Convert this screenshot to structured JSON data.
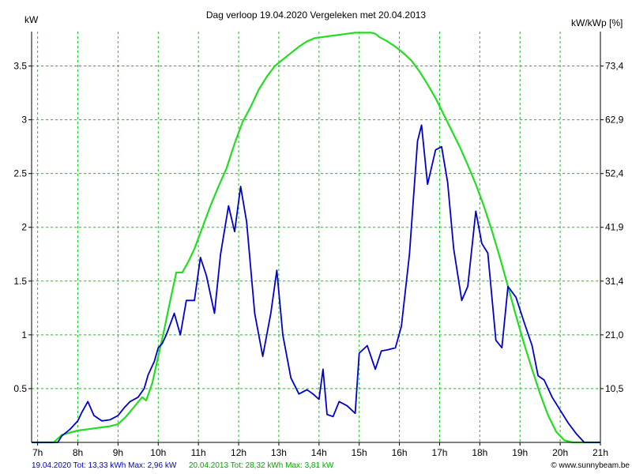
{
  "chart_data": {
    "type": "line",
    "title": "Dag  verloop 19.04.2020    Vergeleken met 20.04.2013",
    "ylabel_left": "kW",
    "ylabel_right": "kW/kWp [%]",
    "xlim": [
      6.85,
      21.0
    ],
    "ylim": [
      0,
      3.82
    ],
    "x_ticks": [
      7,
      8,
      9,
      10,
      11,
      12,
      13,
      14,
      15,
      16,
      17,
      18,
      19,
      20,
      21
    ],
    "x_tick_labels": [
      "7h",
      "8h",
      "9h",
      "10h",
      "11h",
      "12h",
      "13h",
      "14h",
      "15h",
      "16h",
      "17h",
      "18h",
      "19h",
      "20h",
      "21h"
    ],
    "y_ticks_left": [
      0.5,
      1,
      1.5,
      2,
      2.5,
      3,
      3.5
    ],
    "y_tick_labels_left": [
      "0.5",
      "1",
      "1.5",
      "2",
      "2.5",
      "3",
      "3.5"
    ],
    "y_ticks_right": [
      0.5,
      1,
      1.5,
      2,
      2.5,
      3,
      3.5
    ],
    "y_tick_labels_right": [
      "10,5",
      "21,0",
      "31,4",
      "41,9",
      "52,4",
      "62,9",
      "73,4"
    ],
    "grid": true,
    "series": [
      {
        "name": "20.04.2013",
        "color": "#22dd22",
        "x": [
          6.85,
          7.4,
          7.6,
          7.8,
          8.0,
          8.2,
          8.4,
          8.6,
          8.8,
          9.0,
          9.2,
          9.4,
          9.6,
          9.7,
          9.85,
          10.0,
          10.15,
          10.3,
          10.45,
          10.6,
          10.75,
          10.9,
          11.1,
          11.3,
          11.5,
          11.7,
          11.9,
          12.1,
          12.3,
          12.5,
          12.7,
          12.9,
          13.1,
          13.3,
          13.5,
          13.7,
          13.9,
          14.1,
          14.3,
          14.5,
          14.7,
          14.9,
          15.1,
          15.3,
          15.4,
          15.5,
          15.7,
          15.9,
          16.1,
          16.3,
          16.5,
          16.7,
          16.9,
          17.1,
          17.3,
          17.5,
          17.7,
          17.9,
          18.1,
          18.3,
          18.5,
          18.7,
          18.9,
          19.1,
          19.3,
          19.5,
          19.7,
          19.9,
          20.1,
          20.3,
          20.5,
          20.7,
          21.0
        ],
        "y": [
          0.0,
          0.0,
          0.07,
          0.09,
          0.11,
          0.12,
          0.13,
          0.14,
          0.15,
          0.17,
          0.24,
          0.33,
          0.42,
          0.39,
          0.55,
          0.8,
          1.05,
          1.32,
          1.58,
          1.58,
          1.68,
          1.8,
          2.0,
          2.2,
          2.38,
          2.55,
          2.78,
          2.98,
          3.12,
          3.28,
          3.4,
          3.5,
          3.56,
          3.62,
          3.68,
          3.73,
          3.76,
          3.77,
          3.78,
          3.79,
          3.8,
          3.81,
          3.81,
          3.81,
          3.8,
          3.77,
          3.73,
          3.68,
          3.62,
          3.55,
          3.45,
          3.33,
          3.2,
          3.05,
          2.9,
          2.75,
          2.58,
          2.4,
          2.2,
          1.97,
          1.72,
          1.45,
          1.18,
          0.92,
          0.68,
          0.45,
          0.25,
          0.1,
          0.02,
          0.0,
          0.0,
          0.0,
          0.0
        ]
      },
      {
        "name": "19.04.2020",
        "color": "#0000cc",
        "x": [
          6.85,
          7.5,
          7.6,
          7.8,
          8.0,
          8.1,
          8.25,
          8.4,
          8.6,
          8.8,
          9.0,
          9.15,
          9.3,
          9.5,
          9.65,
          9.75,
          9.9,
          10.0,
          10.1,
          10.2,
          10.4,
          10.55,
          10.7,
          10.9,
          11.05,
          11.2,
          11.4,
          11.55,
          11.75,
          11.9,
          12.05,
          12.2,
          12.4,
          12.6,
          12.8,
          12.95,
          13.1,
          13.3,
          13.5,
          13.7,
          13.85,
          14.0,
          14.1,
          14.2,
          14.35,
          14.5,
          14.7,
          14.9,
          15.0,
          15.2,
          15.4,
          15.55,
          15.7,
          15.9,
          16.05,
          16.25,
          16.45,
          16.55,
          16.7,
          16.9,
          17.05,
          17.2,
          17.35,
          17.55,
          17.7,
          17.9,
          18.05,
          18.2,
          18.4,
          18.55,
          18.7,
          18.9,
          19.1,
          19.3,
          19.45,
          19.6,
          19.8,
          20.0,
          20.2,
          20.4,
          20.6,
          21.0
        ],
        "y": [
          0.0,
          0.0,
          0.06,
          0.12,
          0.2,
          0.28,
          0.38,
          0.25,
          0.2,
          0.21,
          0.25,
          0.32,
          0.38,
          0.42,
          0.5,
          0.63,
          0.75,
          0.88,
          0.92,
          1.0,
          1.2,
          1.0,
          1.32,
          1.32,
          1.72,
          1.55,
          1.2,
          1.75,
          2.2,
          1.96,
          2.38,
          2.05,
          1.2,
          0.8,
          1.2,
          1.6,
          1.0,
          0.6,
          0.45,
          0.49,
          0.45,
          0.4,
          0.68,
          0.26,
          0.24,
          0.38,
          0.34,
          0.27,
          0.83,
          0.9,
          0.68,
          0.85,
          0.86,
          0.88,
          1.08,
          1.75,
          2.8,
          2.95,
          2.4,
          2.72,
          2.75,
          2.42,
          1.8,
          1.32,
          1.45,
          2.15,
          1.85,
          1.76,
          0.95,
          0.88,
          1.45,
          1.35,
          1.12,
          0.9,
          0.62,
          0.58,
          0.42,
          0.3,
          0.18,
          0.08,
          0.0,
          0.0
        ]
      }
    ],
    "footer": {
      "blue_text": "19.04.2020 Tot: 13,33 kWh Max: 2,96 kW",
      "green_text": "20.04.2013 Tot: 28,32 kWh Max: 3,81 kW",
      "credit_text": "© www.sunnybeam.be"
    },
    "colors": {
      "grid": "#22bb22",
      "axis": "#000000",
      "blue": "#0000cc",
      "green": "#22dd22",
      "footer_blue": "#0000cc",
      "footer_green": "#00aa00"
    }
  }
}
